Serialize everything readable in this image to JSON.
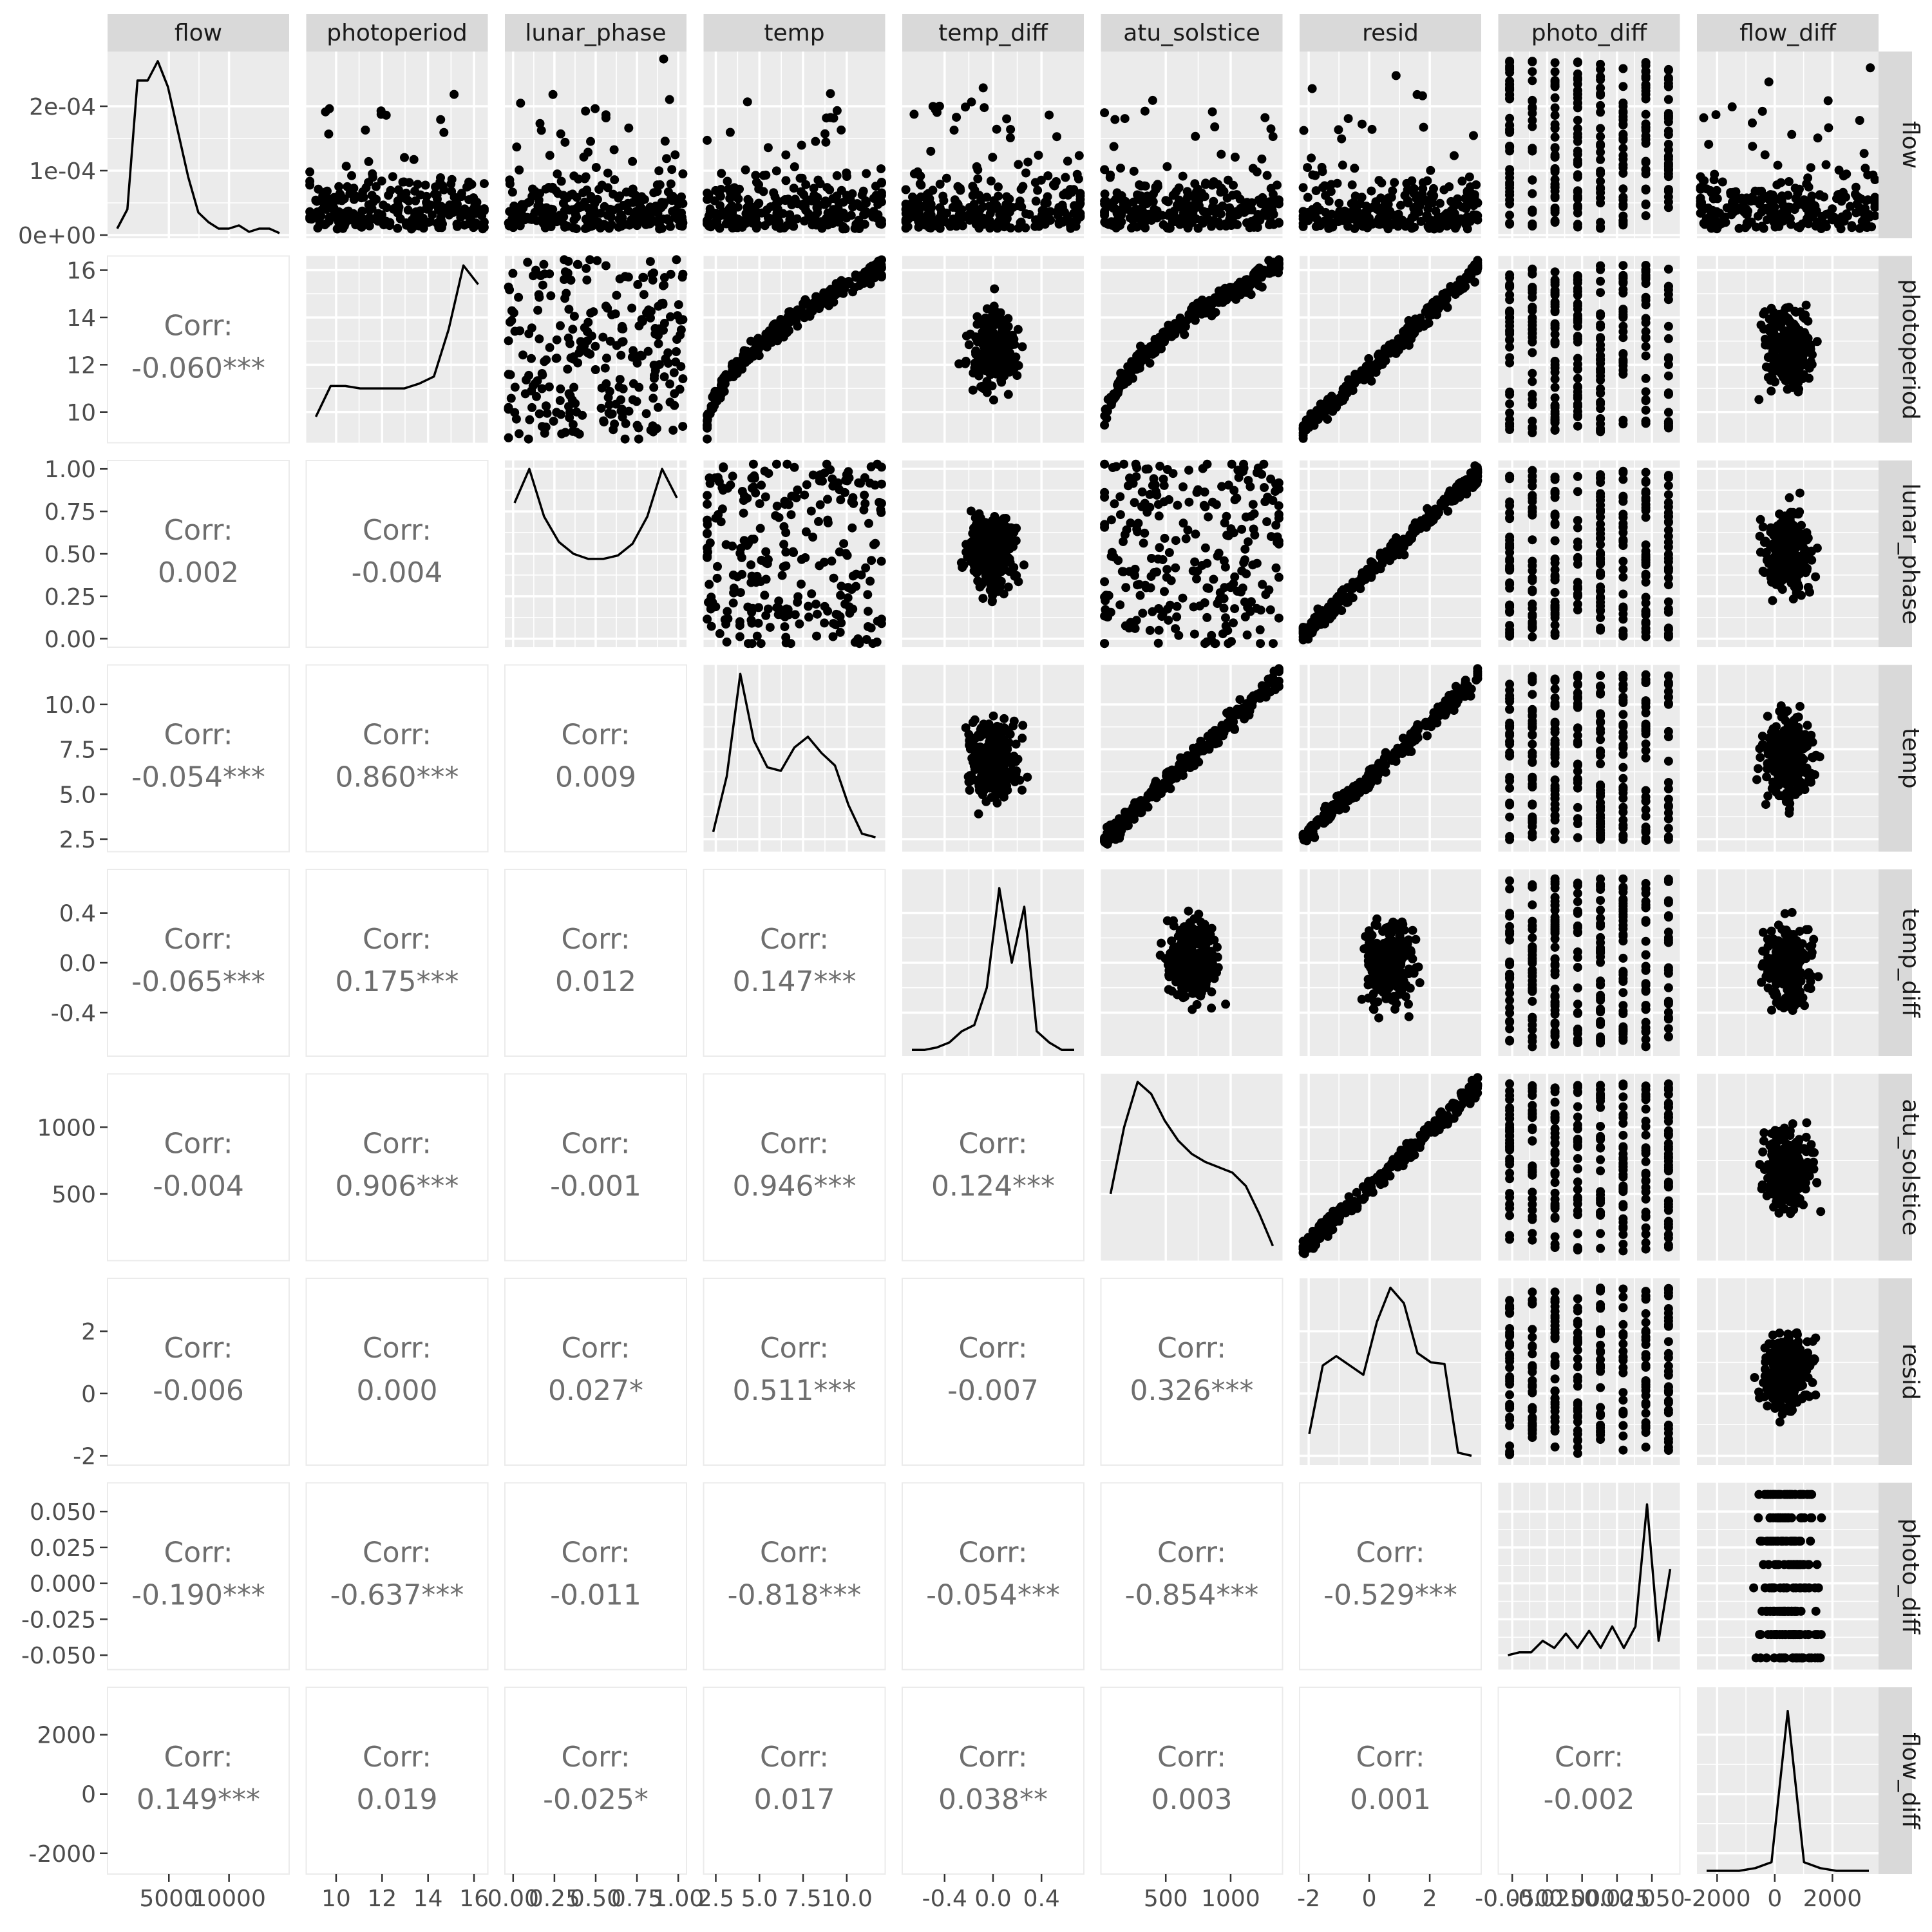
{
  "chart_data": {
    "type": "scatter-matrix",
    "title": "",
    "variables": [
      {
        "name": "flow",
        "range": [
          -100,
          15000
        ],
        "yrange": [
          -5e-06,
          0.000285
        ],
        "xticks": [
          {
            "v": 5000,
            "label": "5000"
          },
          {
            "v": 10000,
            "label": "10000"
          }
        ],
        "yticks": [
          {
            "v": 0,
            "label": "0e+00"
          },
          {
            "v": 0.0001,
            "label": "1e-04"
          },
          {
            "v": 0.0002,
            "label": "2e-04"
          }
        ]
      },
      {
        "name": "photoperiod",
        "range": [
          8.7,
          16.6
        ],
        "xticks": [
          {
            "v": 10,
            "label": "10"
          },
          {
            "v": 12,
            "label": "12"
          },
          {
            "v": 14,
            "label": "14"
          },
          {
            "v": 16,
            "label": "16"
          }
        ],
        "yticks": [
          {
            "v": 10,
            "label": "10"
          },
          {
            "v": 12,
            "label": "12"
          },
          {
            "v": 14,
            "label": "14"
          },
          {
            "v": 16,
            "label": "16"
          }
        ]
      },
      {
        "name": "lunar_phase",
        "range": [
          -0.05,
          1.05
        ],
        "xticks": [
          {
            "v": 0,
            "label": "0.00"
          },
          {
            "v": 0.25,
            "label": "0.25"
          },
          {
            "v": 0.5,
            "label": "0.50"
          },
          {
            "v": 0.75,
            "label": "0.75"
          },
          {
            "v": 1,
            "label": "1.00"
          }
        ],
        "yticks": [
          {
            "v": 0,
            "label": "0.00"
          },
          {
            "v": 0.25,
            "label": "0.25"
          },
          {
            "v": 0.5,
            "label": "0.50"
          },
          {
            "v": 0.75,
            "label": "0.75"
          },
          {
            "v": 1,
            "label": "1.00"
          }
        ]
      },
      {
        "name": "temp",
        "range": [
          1.8,
          12.2
        ],
        "xticks": [
          {
            "v": 2.5,
            "label": "2.5"
          },
          {
            "v": 5,
            "label": "5.0"
          },
          {
            "v": 7.5,
            "label": "7.5"
          },
          {
            "v": 10,
            "label": "10.0"
          }
        ],
        "yticks": [
          {
            "v": 2.5,
            "label": "2.5"
          },
          {
            "v": 5,
            "label": "5.0"
          },
          {
            "v": 7.5,
            "label": "7.5"
          },
          {
            "v": 10,
            "label": "10.0"
          }
        ]
      },
      {
        "name": "temp_diff",
        "range": [
          -0.75,
          0.75
        ],
        "xticks": [
          {
            "v": -0.4,
            "label": "-0.4"
          },
          {
            "v": 0,
            "label": "0.0"
          },
          {
            "v": 0.4,
            "label": "0.4"
          }
        ],
        "yticks": [
          {
            "v": -0.4,
            "label": "-0.4"
          },
          {
            "v": 0,
            "label": "0.0"
          },
          {
            "v": 0.4,
            "label": "0.4"
          }
        ]
      },
      {
        "name": "atu_solstice",
        "range": [
          0,
          1400
        ],
        "xticks": [
          {
            "v": 500,
            "label": "500"
          },
          {
            "v": 1000,
            "label": "1000"
          }
        ],
        "yticks": [
          {
            "v": 500,
            "label": "500"
          },
          {
            "v": 1000,
            "label": "1000"
          }
        ]
      },
      {
        "name": "resid",
        "range": [
          -2.3,
          3.7
        ],
        "xticks": [
          {
            "v": -2,
            "label": "-2"
          },
          {
            "v": 0,
            "label": "0"
          },
          {
            "v": 2,
            "label": "2"
          }
        ],
        "yticks": [
          {
            "v": -2,
            "label": "-2"
          },
          {
            "v": 0,
            "label": "0"
          },
          {
            "v": 2,
            "label": "2"
          }
        ]
      },
      {
        "name": "photo_diff",
        "range": [
          -0.06,
          0.07
        ],
        "xticks": [
          {
            "v": -0.05,
            "label": "-0.050"
          },
          {
            "v": -0.025,
            "label": "-0.025"
          },
          {
            "v": 0,
            "label": "0.000"
          },
          {
            "v": 0.025,
            "label": "0.025"
          },
          {
            "v": 0.05,
            "label": "0.050"
          }
        ],
        "yticks": [
          {
            "v": -0.05,
            "label": "-0.050"
          },
          {
            "v": -0.025,
            "label": "-0.025"
          },
          {
            "v": 0,
            "label": "0.000"
          },
          {
            "v": 0.025,
            "label": "0.025"
          },
          {
            "v": 0.05,
            "label": "0.050"
          }
        ]
      },
      {
        "name": "flow_diff",
        "range": [
          -2700,
          3600
        ],
        "xticks": [
          {
            "v": -2000,
            "label": "-2000"
          },
          {
            "v": 0,
            "label": "0"
          },
          {
            "v": 2000,
            "label": "2000"
          }
        ],
        "yticks": [
          {
            "v": -2000,
            "label": "-2000"
          },
          {
            "v": 0,
            "label": "0"
          },
          {
            "v": 2000,
            "label": "2000"
          }
        ]
      }
    ],
    "correlations": [
      {
        "row": 1,
        "col": 0,
        "label": "Corr:",
        "value": "-0.060***"
      },
      {
        "row": 2,
        "col": 0,
        "label": "Corr:",
        "value": "0.002"
      },
      {
        "row": 2,
        "col": 1,
        "label": "Corr:",
        "value": "-0.004"
      },
      {
        "row": 3,
        "col": 0,
        "label": "Corr:",
        "value": "-0.054***"
      },
      {
        "row": 3,
        "col": 1,
        "label": "Corr:",
        "value": "0.860***"
      },
      {
        "row": 3,
        "col": 2,
        "label": "Corr:",
        "value": "0.009"
      },
      {
        "row": 4,
        "col": 0,
        "label": "Corr:",
        "value": "-0.065***"
      },
      {
        "row": 4,
        "col": 1,
        "label": "Corr:",
        "value": "0.175***"
      },
      {
        "row": 4,
        "col": 2,
        "label": "Corr:",
        "value": "0.012"
      },
      {
        "row": 4,
        "col": 3,
        "label": "Corr:",
        "value": "0.147***"
      },
      {
        "row": 5,
        "col": 0,
        "label": "Corr:",
        "value": "-0.004"
      },
      {
        "row": 5,
        "col": 1,
        "label": "Corr:",
        "value": "0.906***"
      },
      {
        "row": 5,
        "col": 2,
        "label": "Corr:",
        "value": "-0.001"
      },
      {
        "row": 5,
        "col": 3,
        "label": "Corr:",
        "value": "0.946***"
      },
      {
        "row": 5,
        "col": 4,
        "label": "Corr:",
        "value": "0.124***"
      },
      {
        "row": 6,
        "col": 0,
        "label": "Corr:",
        "value": "-0.006"
      },
      {
        "row": 6,
        "col": 1,
        "label": "Corr:",
        "value": "0.000"
      },
      {
        "row": 6,
        "col": 2,
        "label": "Corr:",
        "value": "0.027*"
      },
      {
        "row": 6,
        "col": 3,
        "label": "Corr:",
        "value": "0.511***"
      },
      {
        "row": 6,
        "col": 4,
        "label": "Corr:",
        "value": "-0.007"
      },
      {
        "row": 6,
        "col": 5,
        "label": "Corr:",
        "value": "0.326***"
      },
      {
        "row": 7,
        "col": 0,
        "label": "Corr:",
        "value": "-0.190***"
      },
      {
        "row": 7,
        "col": 1,
        "label": "Corr:",
        "value": "-0.637***"
      },
      {
        "row": 7,
        "col": 2,
        "label": "Corr:",
        "value": "-0.011"
      },
      {
        "row": 7,
        "col": 3,
        "label": "Corr:",
        "value": "-0.818***"
      },
      {
        "row": 7,
        "col": 4,
        "label": "Corr:",
        "value": "-0.054***"
      },
      {
        "row": 7,
        "col": 5,
        "label": "Corr:",
        "value": "-0.854***"
      },
      {
        "row": 7,
        "col": 6,
        "label": "Corr:",
        "value": "-0.529***"
      },
      {
        "row": 8,
        "col": 0,
        "label": "Corr:",
        "value": "0.149***"
      },
      {
        "row": 8,
        "col": 1,
        "label": "Corr:",
        "value": "0.019"
      },
      {
        "row": 8,
        "col": 2,
        "label": "Corr:",
        "value": "-0.025*"
      },
      {
        "row": 8,
        "col": 3,
        "label": "Corr:",
        "value": "0.017"
      },
      {
        "row": 8,
        "col": 4,
        "label": "Corr:",
        "value": "0.038**"
      },
      {
        "row": 8,
        "col": 5,
        "label": "Corr:",
        "value": "0.003"
      },
      {
        "row": 8,
        "col": 6,
        "label": "Corr:",
        "value": "0.001"
      },
      {
        "row": 8,
        "col": 7,
        "label": "Corr:",
        "value": "-0.002"
      }
    ],
    "density_curves": [
      {
        "var": "flow",
        "y": [
          1e-05,
          4e-05,
          0.00024,
          0.00024,
          0.00027,
          0.00023,
          0.00016,
          9e-05,
          3.5e-05,
          2e-05,
          1e-05,
          1e-05,
          1.5e-05,
          5e-06,
          1e-05,
          1e-05,
          3e-06
        ]
      },
      {
        "var": "photoperiod",
        "y": [
          9.8,
          11.1,
          11.1,
          11.0,
          11.0,
          11.0,
          11.0,
          11.2,
          11.5,
          13.5,
          16.2,
          15.4
        ]
      },
      {
        "var": "lunar_phase",
        "y": [
          0.8,
          1.0,
          0.72,
          0.57,
          0.5,
          0.47,
          0.47,
          0.49,
          0.56,
          0.72,
          1.0,
          0.83
        ]
      },
      {
        "var": "temp",
        "y": [
          2.9,
          6.0,
          11.7,
          8.0,
          6.5,
          6.3,
          7.6,
          8.2,
          7.3,
          6.6,
          4.4,
          2.8,
          2.6
        ]
      },
      {
        "var": "temp_diff",
        "y": [
          -0.7,
          -0.7,
          -0.68,
          -0.64,
          -0.55,
          -0.5,
          -0.2,
          0.6,
          0.0,
          0.45,
          -0.55,
          -0.64,
          -0.7,
          -0.7
        ]
      },
      {
        "var": "atu_solstice",
        "y": [
          500,
          1000,
          1340,
          1250,
          1050,
          900,
          800,
          740,
          700,
          660,
          560,
          350,
          110
        ]
      },
      {
        "var": "resid",
        "y": [
          -1.3,
          0.9,
          1.2,
          0.9,
          0.6,
          2.3,
          3.4,
          2.9,
          1.3,
          1.0,
          0.95,
          -1.9,
          -2.0
        ]
      },
      {
        "var": "photo_diff",
        "y": [
          -0.05,
          -0.048,
          -0.048,
          -0.04,
          -0.045,
          -0.035,
          -0.045,
          -0.033,
          -0.045,
          -0.03,
          -0.045,
          -0.03,
          0.055,
          -0.04,
          0.01
        ]
      },
      {
        "var": "flow_diff",
        "y": [
          -2650,
          -2600,
          -2600,
          -2500,
          -2300,
          2800,
          -2300,
          -2500,
          -2600,
          -2600,
          -2600
        ]
      }
    ],
    "grid": true,
    "point_color": "#000000",
    "panel_background": "#ebebeb",
    "strip_background": "#d9d9d9",
    "corr_text_color": "#6e6e6e"
  }
}
